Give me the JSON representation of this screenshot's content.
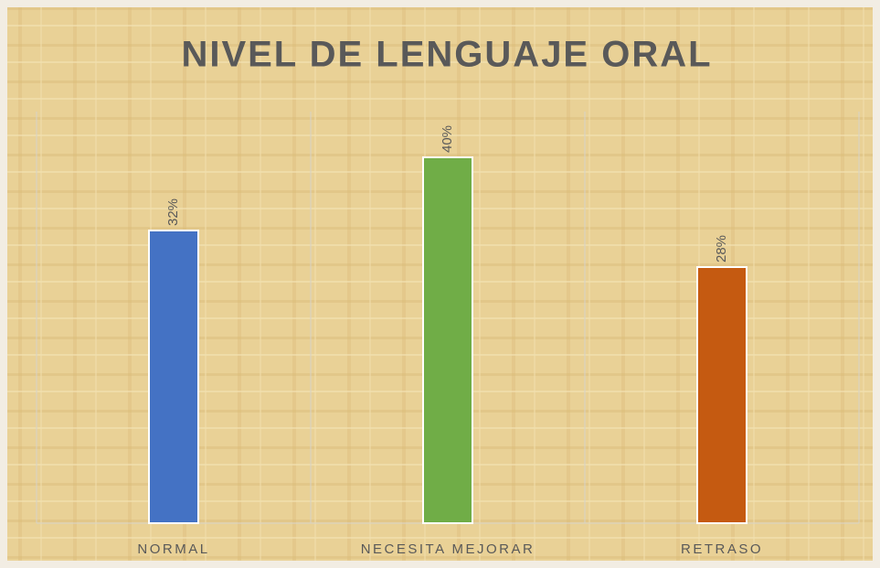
{
  "chart_data": {
    "type": "bar",
    "title": "NIVEL DE LENGUAJE ORAL",
    "categories": [
      "NORMAL",
      "NECESITA MEJORAR",
      "RETRASO"
    ],
    "values": [
      32,
      40,
      28
    ],
    "value_labels": [
      "32%",
      "40%",
      "28%"
    ],
    "colors": [
      "#4472c4",
      "#70ad47",
      "#c55a11"
    ],
    "ylim": [
      0,
      45
    ]
  }
}
